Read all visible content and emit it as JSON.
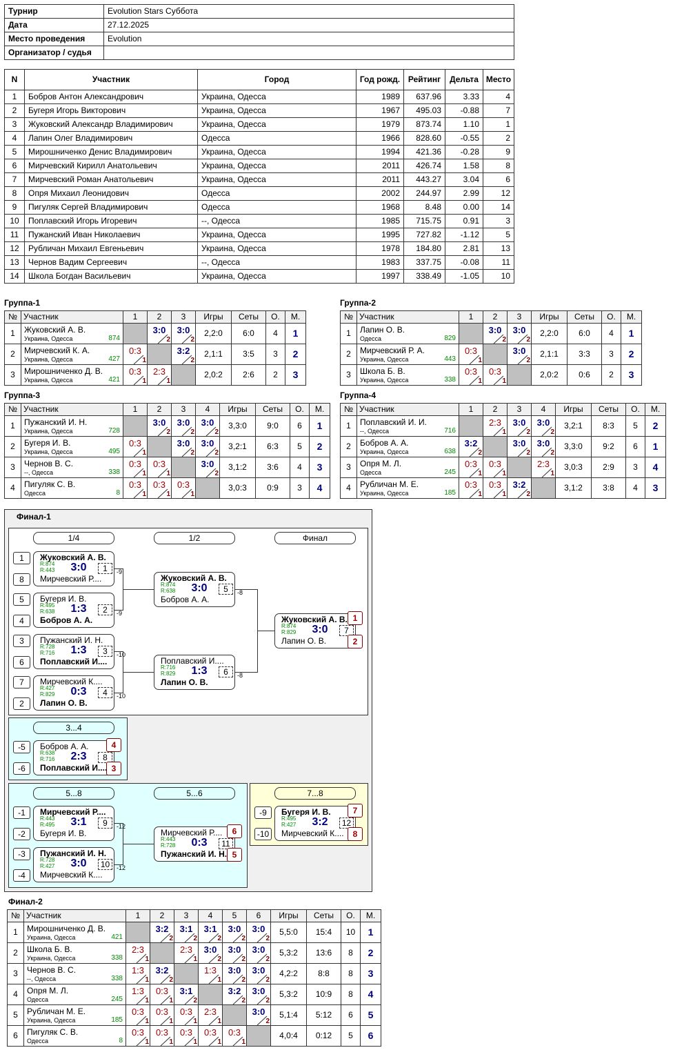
{
  "info": {
    "rows": [
      {
        "label": "Турнир",
        "value": "Evolution Stars Суббота"
      },
      {
        "label": "Дата",
        "value": "27.12.2025"
      },
      {
        "label": "Место проведения",
        "value": "Evolution"
      },
      {
        "label": "Организатор / судья"
      }
    ]
  },
  "participants": {
    "headers": [
      "N",
      "Участник",
      "Город",
      "Год рожд.",
      "Рейтинг",
      "Дельта",
      "Место"
    ],
    "rows": [
      [
        1,
        "Бобров Антон Александрович",
        "Украина, Одесса",
        1989,
        "637.96",
        "3.33",
        4
      ],
      [
        2,
        "Бугеря Игорь Викторович",
        "Украина, Одесса",
        1967,
        "495.03",
        "-0.88",
        7
      ],
      [
        3,
        "Жуковский Александр Владимирович",
        "Украина, Одесса",
        1979,
        "873.74",
        "1.10",
        1
      ],
      [
        4,
        "Лапин Олег Владимирович",
        "Одесса",
        1966,
        "828.60",
        "-0.55",
        2
      ],
      [
        5,
        "Мирошниченко Денис Владимирович",
        "Украина, Одесса",
        1994,
        "421.36",
        "-0.28",
        9
      ],
      [
        6,
        "Мирчевский Кирилл Анатольевич",
        "Украина, Одесса",
        2011,
        "426.74",
        "1.58",
        8
      ],
      [
        7,
        "Мирчевский Роман Анатольевич",
        "Украина, Одесса",
        2011,
        "443.27",
        "3.04",
        6
      ],
      [
        8,
        "Опря Михаил Леонидович",
        "Одесса",
        2002,
        "244.97",
        "2.99",
        12
      ],
      [
        9,
        "Пигуляк Сергей Владимирович",
        "Одесса",
        1968,
        "8.48",
        "0.00",
        14
      ],
      [
        10,
        "Поплавский Игорь Игоревич",
        "--, Одесса",
        1985,
        "715.75",
        "0.91",
        3
      ],
      [
        11,
        "Пужанский Иван Николаевич",
        "Украина, Одесса",
        1995,
        "727.82",
        "-1.12",
        5
      ],
      [
        12,
        "Рубличан Михаил Евгеньевич",
        "Украина, Одесса",
        1978,
        "184.80",
        "2.81",
        13
      ],
      [
        13,
        "Чернов Вадим Сергеевич",
        "--, Одесса",
        1983,
        "337.75",
        "-0.08",
        11
      ],
      [
        14,
        "Школа Богдан Васильевич",
        "Украина, Одесса",
        1997,
        "338.49",
        "-1.05",
        10
      ]
    ]
  },
  "groups": [
    {
      "title": "Группа-1",
      "headers": [
        "№",
        "Участник",
        "1",
        "2",
        "3",
        "Игры",
        "Сеты",
        "О.",
        "М."
      ],
      "rows": [
        {
          "no": 1,
          "name": "Жуковский А. В.",
          "city": "Украина, Одесса",
          "rating": 874,
          "cells": [
            null,
            {
              "score": "3:0",
              "match": 2
            },
            {
              "score": "3:0",
              "match": 2
            }
          ],
          "games": "2,2:0",
          "sets": "6:0",
          "points": 4,
          "place": 1
        },
        {
          "no": 2,
          "name": "Мирчевский К. А.",
          "city": "Украина, Одесса",
          "rating": 427,
          "cells": [
            {
              "score": "0:3",
              "match": 1
            },
            null,
            {
              "score": "3:2",
              "match": 2
            }
          ],
          "games": "2,1:1",
          "sets": "3:5",
          "points": 3,
          "place": 2
        },
        {
          "no": 3,
          "name": "Мирошниченко Д. В.",
          "city": "Украина, Одесса",
          "rating": 421,
          "cells": [
            {
              "score": "0:3",
              "match": 1
            },
            {
              "score": "2:3",
              "match": 1
            },
            null
          ],
          "games": "2,0:2",
          "sets": "2:6",
          "points": 2,
          "place": 3
        }
      ]
    },
    {
      "title": "Группа-2",
      "headers": [
        "№",
        "Участник",
        "1",
        "2",
        "3",
        "Игры",
        "Сеты",
        "О.",
        "М."
      ],
      "rows": [
        {
          "no": 1,
          "name": "Лапин О. В.",
          "city": "Одесса",
          "rating": 829,
          "cells": [
            null,
            {
              "score": "3:0",
              "match": 2
            },
            {
              "score": "3:0",
              "match": 2
            }
          ],
          "games": "2,2:0",
          "sets": "6:0",
          "points": 4,
          "place": 1
        },
        {
          "no": 2,
          "name": "Мирчевский Р. А.",
          "city": "Украина, Одесса",
          "rating": 443,
          "cells": [
            {
              "score": "0:3",
              "match": 1
            },
            null,
            {
              "score": "3:0",
              "match": 2
            }
          ],
          "games": "2,1:1",
          "sets": "3:3",
          "points": 3,
          "place": 2
        },
        {
          "no": 3,
          "name": "Школа Б. В.",
          "city": "Украина, Одесса",
          "rating": 338,
          "cells": [
            {
              "score": "0:3",
              "match": 1
            },
            {
              "score": "0:3",
              "match": 1
            },
            null
          ],
          "games": "2,0:2",
          "sets": "0:6",
          "points": 2,
          "place": 3
        }
      ]
    },
    {
      "title": "Группа-3",
      "headers": [
        "№",
        "Участник",
        "1",
        "2",
        "3",
        "4",
        "Игры",
        "Сеты",
        "О.",
        "М."
      ],
      "rows": [
        {
          "no": 1,
          "name": "Пужанский И. Н.",
          "city": "Украина, Одесса",
          "rating": 728,
          "cells": [
            null,
            {
              "score": "3:0",
              "match": 2
            },
            {
              "score": "3:0",
              "match": 2
            },
            {
              "score": "3:0",
              "match": 2
            }
          ],
          "games": "3,3:0",
          "sets": "9:0",
          "points": 6,
          "place": 1
        },
        {
          "no": 2,
          "name": "Бугеря И. В.",
          "city": "Украина, Одесса",
          "rating": 495,
          "cells": [
            {
              "score": "0:3",
              "match": 1
            },
            null,
            {
              "score": "3:0",
              "match": 2
            },
            {
              "score": "3:0",
              "match": 2
            }
          ],
          "games": "3,2:1",
          "sets": "6:3",
          "points": 5,
          "place": 2
        },
        {
          "no": 3,
          "name": "Чернов В. С.",
          "city": "--, Одесса",
          "rating": 338,
          "cells": [
            {
              "score": "0:3",
              "match": 1
            },
            {
              "score": "0:3",
              "match": 1
            },
            null,
            {
              "score": "3:0",
              "match": 2
            }
          ],
          "games": "3,1:2",
          "sets": "3:6",
          "points": 4,
          "place": 3
        },
        {
          "no": 4,
          "name": "Пигуляк С. В.",
          "city": "Одесса",
          "rating": 8,
          "cells": [
            {
              "score": "0:3",
              "match": 1
            },
            {
              "score": "0:3",
              "match": 1
            },
            {
              "score": "0:3",
              "match": 1
            },
            null
          ],
          "games": "3,0:3",
          "sets": "0:9",
          "points": 3,
          "place": 4
        }
      ]
    },
    {
      "title": "Группа-4",
      "headers": [
        "№",
        "Участник",
        "1",
        "2",
        "3",
        "4",
        "Игры",
        "Сеты",
        "О.",
        "М."
      ],
      "rows": [
        {
          "no": 1,
          "name": "Поплавский И. И.",
          "city": "--, Одесса",
          "rating": 716,
          "cells": [
            null,
            {
              "score": "2:3",
              "match": 1
            },
            {
              "score": "3:0",
              "match": 2
            },
            {
              "score": "3:0",
              "match": 2
            }
          ],
          "games": "3,2:1",
          "sets": "8:3",
          "points": 5,
          "place": 2
        },
        {
          "no": 2,
          "name": "Бобров А. А.",
          "city": "Украина, Одесса",
          "rating": 638,
          "cells": [
            {
              "score": "3:2",
              "match": 2
            },
            null,
            {
              "score": "3:0",
              "match": 2
            },
            {
              "score": "3:0",
              "match": 2
            }
          ],
          "games": "3,3:0",
          "sets": "9:2",
          "points": 6,
          "place": 1
        },
        {
          "no": 3,
          "name": "Опря М. Л.",
          "city": "Одесса",
          "rating": 245,
          "cells": [
            {
              "score": "0:3",
              "match": 1
            },
            {
              "score": "0:3",
              "match": 1
            },
            null,
            {
              "score": "2:3",
              "match": 1
            }
          ],
          "games": "3,0:3",
          "sets": "2:9",
          "points": 3,
          "place": 4
        },
        {
          "no": 4,
          "name": "Рубличан М. Е.",
          "city": "Украина, Одесса",
          "rating": 185,
          "cells": [
            {
              "score": "0:3",
              "match": 1
            },
            {
              "score": "0:3",
              "match": 1
            },
            {
              "score": "3:2",
              "match": 2
            },
            null
          ],
          "games": "3,1:2",
          "sets": "3:8",
          "points": 4,
          "place": 3
        }
      ]
    }
  ],
  "final1": {
    "title": "Финал-1",
    "labels": [
      "1/4",
      "1/2",
      "Финал",
      "3...4",
      "5...8",
      "5...6",
      "7...8"
    ],
    "matches": [
      {
        "seeds": [
          1,
          8
        ],
        "top": {
          "name": "Жуковский А. В.",
          "rating": "R:874"
        },
        "bottom": {
          "name": "Мирчевский Р....",
          "rating": "R:443"
        },
        "score": "3:0",
        "match": 1,
        "loser_to": -9
      },
      {
        "seeds": [
          5,
          4
        ],
        "top": {
          "name": "Бугеря И. В.",
          "rating": "R:495"
        },
        "bottom": {
          "name": "Бобров А. А.",
          "rating": "R:638"
        },
        "score": "1:3",
        "match": 2,
        "loser_to": -9
      },
      {
        "seeds": [
          3,
          6
        ],
        "top": {
          "name": "Пужанский И. Н.",
          "rating": "R:728"
        },
        "bottom": {
          "name": "Поплавский И....",
          "rating": "R:716"
        },
        "score": "1:3",
        "match": 3,
        "loser_to": -10
      },
      {
        "seeds": [
          7,
          2
        ],
        "top": {
          "name": "Мирчевский К....",
          "rating": "R:427"
        },
        "bottom": {
          "name": "Лапин О. В.",
          "rating": "R:829"
        },
        "score": "0:3",
        "match": 4,
        "loser_to": -10
      },
      {
        "top": {
          "name": "Жуковский А. В.",
          "rating": "R:874"
        },
        "bottom": {
          "name": "Бобров А. А.",
          "rating": "R:638"
        },
        "score": "3:0",
        "match": 5,
        "loser_to": -8
      },
      {
        "top": {
          "name": "Поплавский И....",
          "rating": "R:716"
        },
        "bottom": {
          "name": "Лапин О. В.",
          "rating": "R:829"
        },
        "score": "1:3",
        "match": 6,
        "loser_to": -8
      },
      {
        "top": {
          "name": "Жуковский А. В.",
          "rating": "R:874"
        },
        "bottom": {
          "name": "Лапин О. В.",
          "rating": "R:829"
        },
        "score": "3:0",
        "match": 7,
        "places": [
          1,
          2
        ]
      },
      {
        "seeds": [
          -5,
          -6
        ],
        "top": {
          "name": "Бобров А. А.",
          "rating": "R:638"
        },
        "bottom": {
          "name": "Поплавский И....",
          "rating": "R:716"
        },
        "score": "2:3",
        "match": 8,
        "places": [
          4,
          3
        ]
      },
      {
        "seeds": [
          -1,
          -2
        ],
        "top": {
          "name": "Мирчевский Р....",
          "rating": "R:443"
        },
        "bottom": {
          "name": "Бугеря И. В.",
          "rating": "R:495"
        },
        "score": "3:1",
        "match": 9,
        "loser_to": -12
      },
      {
        "seeds": [
          -3,
          -4
        ],
        "top": {
          "name": "Пужанский И. Н.",
          "rating": "R:728"
        },
        "bottom": {
          "name": "Мирчевский К....",
          "rating": "R:427"
        },
        "score": "3:0",
        "match": 10,
        "loser_to": -12
      },
      {
        "top": {
          "name": "Мирчевский Р....",
          "rating": "R:443"
        },
        "bottom": {
          "name": "Пужанский И. Н.",
          "rating": "R:728"
        },
        "score": "0:3",
        "match": 11,
        "places": [
          6,
          5
        ]
      },
      {
        "seeds": [
          -9,
          -10
        ],
        "top": {
          "name": "Бугеря И. В.",
          "rating": "R:495"
        },
        "bottom": {
          "name": "Мирчевский К....",
          "rating": "R:427"
        },
        "score": "3:2",
        "match": 12,
        "places": [
          7,
          8
        ]
      }
    ]
  },
  "final2": {
    "title": "Финал-2",
    "headers": [
      "№",
      "Участник",
      "1",
      "2",
      "3",
      "4",
      "5",
      "6",
      "Игры",
      "Сеты",
      "О.",
      "М."
    ],
    "rows": [
      {
        "no": 1,
        "name": "Мирошниченко Д. В.",
        "city": "Украина, Одесса",
        "rating": 421,
        "cells": [
          null,
          {
            "score": "3:2",
            "match": 2
          },
          {
            "score": "3:1",
            "match": 2
          },
          {
            "score": "3:1",
            "match": 2
          },
          {
            "score": "3:0",
            "match": 2
          },
          {
            "score": "3:0",
            "match": 2
          }
        ],
        "games": "5,5:0",
        "sets": "15:4",
        "points": 10,
        "place": 1
      },
      {
        "no": 2,
        "name": "Школа Б. В.",
        "city": "Украина, Одесса",
        "rating": 338,
        "cells": [
          {
            "score": "2:3",
            "match": 1
          },
          null,
          {
            "score": "2:3",
            "match": 1
          },
          {
            "score": "3:0",
            "match": 2
          },
          {
            "score": "3:0",
            "match": 2
          },
          {
            "score": "3:0",
            "match": 2
          }
        ],
        "games": "5,3:2",
        "sets": "13:6",
        "points": 8,
        "place": 2
      },
      {
        "no": 3,
        "name": "Чернов В. С.",
        "city": "--, Одесса",
        "rating": 338,
        "cells": [
          {
            "score": "1:3",
            "match": 1
          },
          {
            "score": "3:2",
            "match": 2
          },
          null,
          {
            "score": "1:3",
            "match": 1
          },
          {
            "score": "3:0",
            "match": 2
          },
          {
            "score": "3:0",
            "match": 2
          }
        ],
        "games": "4,2:2",
        "sets": "8:8",
        "points": 8,
        "place": 3
      },
      {
        "no": 4,
        "name": "Опря М. Л.",
        "city": "Одесса",
        "rating": 245,
        "cells": [
          {
            "score": "1:3",
            "match": 1
          },
          {
            "score": "0:3",
            "match": 1
          },
          {
            "score": "3:1",
            "match": 2
          },
          null,
          {
            "score": "3:2",
            "match": 2
          },
          {
            "score": "3:0",
            "match": 2
          }
        ],
        "games": "5,3:2",
        "sets": "10:9",
        "points": 8,
        "place": 4
      },
      {
        "no": 5,
        "name": "Рубличан М. Е.",
        "city": "Украина, Одесса",
        "rating": 185,
        "cells": [
          {
            "score": "0:3",
            "match": 1
          },
          {
            "score": "0:3",
            "match": 1
          },
          {
            "score": "0:3",
            "match": 1
          },
          {
            "score": "2:3",
            "match": 1
          },
          null,
          {
            "score": "3:0",
            "match": 2
          }
        ],
        "games": "5,1:4",
        "sets": "5:12",
        "points": 6,
        "place": 5
      },
      {
        "no": 6,
        "name": "Пигуляк С. В.",
        "city": "Одесса",
        "rating": 8,
        "cells": [
          {
            "score": "0:3",
            "match": 1
          },
          {
            "score": "0:3",
            "match": 1
          },
          {
            "score": "0:3",
            "match": 1
          },
          {
            "score": "0:3",
            "match": 1
          },
          {
            "score": "0:3",
            "match": 1
          },
          null
        ],
        "games": "4,0:4",
        "sets": "0:12",
        "points": 5,
        "place": 6
      }
    ]
  }
}
